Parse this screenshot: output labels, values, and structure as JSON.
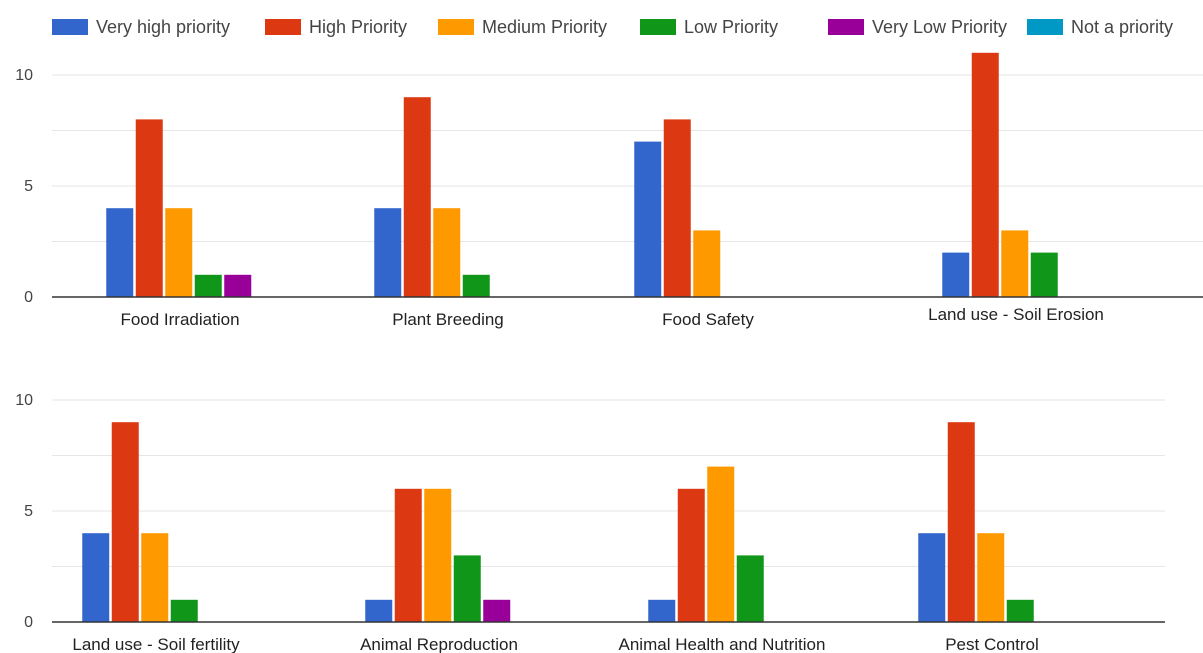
{
  "legend": [
    {
      "label": "Very high priority",
      "color": "#3366cc"
    },
    {
      "label": "High Priority",
      "color": "#dc3912"
    },
    {
      "label": "Medium Priority",
      "color": "#ff9900"
    },
    {
      "label": "Low Priority",
      "color": "#109618"
    },
    {
      "label": "Very Low Priority",
      "color": "#990099"
    },
    {
      "label": "Not a priority",
      "color": "#0099c6"
    }
  ],
  "chart_data": [
    {
      "type": "bar",
      "title": "",
      "xlabel": "",
      "ylabel": "",
      "ylim": [
        0,
        10
      ],
      "yticks": [
        "0",
        "5",
        "10"
      ],
      "grid": true,
      "legend_position": "top",
      "categories": [
        "Food Irradiation",
        "Plant Breeding",
        "Food Safety",
        "Land use - Soil Erosion"
      ],
      "series": [
        {
          "name": "Very high priority",
          "values": [
            4,
            4,
            7,
            2
          ]
        },
        {
          "name": "High Priority",
          "values": [
            8,
            9,
            8,
            11
          ]
        },
        {
          "name": "Medium Priority",
          "values": [
            4,
            4,
            3,
            3
          ]
        },
        {
          "name": "Low Priority",
          "values": [
            1,
            1,
            0,
            2
          ]
        },
        {
          "name": "Very Low Priority",
          "values": [
            1,
            0,
            0,
            0
          ]
        },
        {
          "name": "Not a priority",
          "values": [
            0,
            0,
            0,
            0
          ]
        }
      ]
    },
    {
      "type": "bar",
      "title": "",
      "xlabel": "",
      "ylabel": "",
      "ylim": [
        0,
        10
      ],
      "yticks": [
        "0",
        "5",
        "10"
      ],
      "grid": true,
      "legend_position": "top",
      "categories": [
        "Land use - Soil fertility",
        "Animal Reproduction",
        "Animal Health and Nutrition",
        "Pest Control"
      ],
      "series": [
        {
          "name": "Very high priority",
          "values": [
            4,
            1,
            1,
            4
          ]
        },
        {
          "name": "High Priority",
          "values": [
            9,
            6,
            6,
            9
          ]
        },
        {
          "name": "Medium Priority",
          "values": [
            4,
            6,
            7,
            4
          ]
        },
        {
          "name": "Low Priority",
          "values": [
            1,
            3,
            3,
            1
          ]
        },
        {
          "name": "Very Low Priority",
          "values": [
            0,
            1,
            0,
            0
          ]
        },
        {
          "name": "Not a priority",
          "values": [
            0,
            0,
            0,
            0
          ]
        }
      ]
    }
  ]
}
